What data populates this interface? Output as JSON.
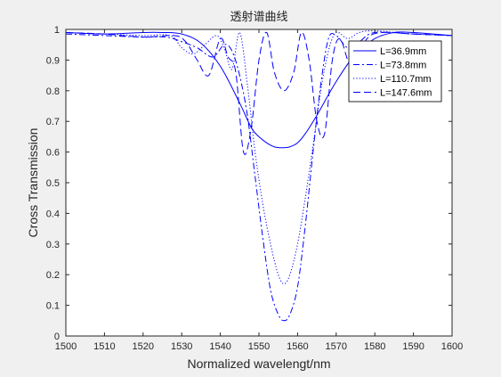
{
  "chart_data": {
    "type": "line",
    "title": "透射谱曲线",
    "xlabel": "Normalized wavelengt/nm",
    "ylabel": "Cross Transmission",
    "xlim": [
      1500,
      1600
    ],
    "ylim": [
      0,
      1
    ],
    "xticks": [
      "1500",
      "1510",
      "1520",
      "1530",
      "1540",
      "1550",
      "1560",
      "1570",
      "1580",
      "1590",
      "1600"
    ],
    "yticks": [
      "0",
      "0.1",
      "0.2",
      "0.3",
      "0.4",
      "0.5",
      "0.6",
      "0.7",
      "0.8",
      "0.9",
      "1"
    ],
    "grid": false,
    "legend_position": "top-right",
    "line_color": "#0000ff",
    "series": [
      {
        "name": "L=36.9mm",
        "style": "solid",
        "x": [
          1500,
          1510,
          1520,
          1525,
          1530,
          1535,
          1540,
          1545,
          1548,
          1550,
          1552,
          1554,
          1556,
          1558,
          1560,
          1562,
          1565,
          1570,
          1575,
          1580,
          1585,
          1590,
          1595,
          1600
        ],
        "y": [
          0.99,
          0.985,
          0.99,
          0.99,
          0.985,
          0.955,
          0.88,
          0.76,
          0.68,
          0.65,
          0.63,
          0.617,
          0.614,
          0.617,
          0.63,
          0.66,
          0.72,
          0.83,
          0.92,
          0.97,
          0.99,
          0.99,
          0.985,
          0.98
        ]
      },
      {
        "name": "L=73.8mm",
        "style": "dashdot",
        "x": [
          1500,
          1510,
          1520,
          1526,
          1530,
          1534,
          1538,
          1541,
          1543,
          1545,
          1547,
          1549,
          1551,
          1553,
          1555,
          1556.5,
          1558,
          1560,
          1562,
          1564,
          1566,
          1568,
          1570,
          1573,
          1576,
          1580,
          1590,
          1600
        ],
        "y": [
          0.985,
          0.98,
          0.975,
          0.975,
          0.96,
          0.94,
          0.91,
          0.95,
          0.93,
          0.85,
          0.72,
          0.52,
          0.32,
          0.15,
          0.07,
          0.05,
          0.07,
          0.16,
          0.36,
          0.6,
          0.82,
          0.97,
          0.98,
          0.94,
          0.96,
          0.99,
          0.985,
          0.98
        ]
      },
      {
        "name": "L=110.7mm",
        "style": "dotted",
        "x": [
          1500,
          1510,
          1520,
          1527,
          1530,
          1533,
          1536,
          1539,
          1541,
          1543,
          1545,
          1547,
          1549,
          1551,
          1553,
          1555,
          1556.5,
          1558,
          1560,
          1562,
          1564,
          1566,
          1568,
          1570,
          1573,
          1576,
          1580,
          1590,
          1600
        ],
        "y": [
          0.99,
          0.985,
          0.98,
          0.98,
          0.94,
          0.92,
          0.95,
          0.98,
          0.94,
          0.87,
          0.99,
          0.82,
          0.6,
          0.43,
          0.3,
          0.2,
          0.17,
          0.2,
          0.3,
          0.45,
          0.62,
          0.8,
          0.93,
          0.99,
          0.97,
          0.99,
          0.995,
          0.985,
          0.98
        ]
      },
      {
        "name": "L=147.6mm",
        "style": "dashed",
        "x": [
          1500,
          1510,
          1520,
          1528,
          1531,
          1534,
          1537,
          1540,
          1542,
          1544,
          1546,
          1548,
          1550,
          1552,
          1554,
          1556.5,
          1559,
          1561,
          1563,
          1565,
          1567,
          1569,
          1571,
          1574,
          1578,
          1582,
          1590,
          1600
        ],
        "y": [
          0.99,
          0.985,
          0.975,
          0.98,
          0.96,
          0.9,
          0.85,
          0.97,
          0.91,
          0.86,
          0.6,
          0.68,
          0.9,
          0.99,
          0.86,
          0.8,
          0.86,
          0.99,
          0.9,
          0.7,
          0.66,
          0.9,
          0.97,
          0.88,
          0.97,
          0.99,
          0.985,
          0.98
        ]
      }
    ]
  }
}
